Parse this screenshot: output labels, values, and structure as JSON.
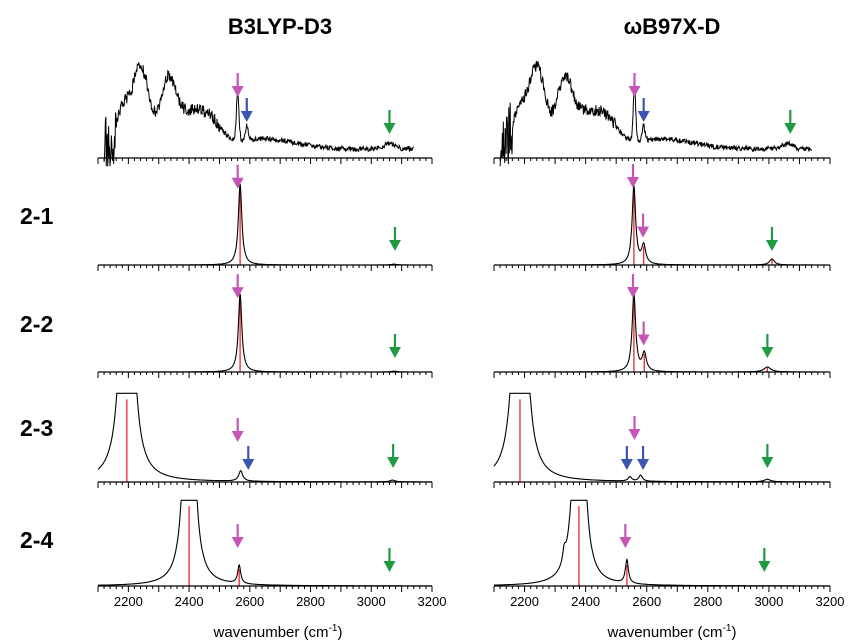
{
  "columns": [
    {
      "title": "B3LYP-D3"
    },
    {
      "title": "ωB97X-D"
    }
  ],
  "rows": [
    "2-1",
    "2-2",
    "2-3",
    "2-4"
  ],
  "xaxis": {
    "label": "wavenumber (cm",
    "unit_sup": "-1",
    "label_close": ")",
    "ticks": [
      "2200",
      "2400",
      "2600",
      "2800",
      "3000",
      "3200"
    ]
  },
  "colors": {
    "spectrum": "#000000",
    "stick": "#e8282b",
    "arrow_magenta": "#c556b6",
    "arrow_blue": "#3c55b0",
    "arrow_green": "#1f9a43"
  },
  "chart_data": [
    {
      "type": "line",
      "name": "experiment",
      "column": "B3LYP-D3",
      "xlim": [
        2100,
        3200
      ],
      "arrows": [
        {
          "x": 2560,
          "color": "magenta"
        },
        {
          "x": 2590,
          "color": "blue"
        },
        {
          "x": 3060,
          "color": "green"
        }
      ]
    },
    {
      "type": "line",
      "name": "experiment",
      "column": "ωB97X-D",
      "xlim": [
        2100,
        3200
      ],
      "arrows": [
        {
          "x": 2560,
          "color": "magenta"
        },
        {
          "x": 2590,
          "color": "blue"
        },
        {
          "x": 3070,
          "color": "green"
        }
      ]
    },
    {
      "type": "line",
      "row": "2-1",
      "column": "B3LYP-D3",
      "xlim": [
        2100,
        3200
      ],
      "peaks": [
        {
          "x": 2568,
          "h": 0.95,
          "w": 7
        },
        {
          "x": 3075,
          "h": 0.01,
          "w": 10
        }
      ],
      "sticks": [
        {
          "x": 2568,
          "h": 0.95
        }
      ],
      "arrows": [
        {
          "x": 2560,
          "color": "magenta"
        },
        {
          "x": 3078,
          "color": "green"
        }
      ]
    },
    {
      "type": "line",
      "row": "2-1",
      "column": "ωB97X-D",
      "xlim": [
        2100,
        3200
      ],
      "peaks": [
        {
          "x": 2558,
          "h": 0.92,
          "w": 7
        },
        {
          "x": 2590,
          "h": 0.22,
          "w": 8
        },
        {
          "x": 3010,
          "h": 0.07,
          "w": 10
        }
      ],
      "sticks": [
        {
          "x": 2558,
          "h": 0.92
        },
        {
          "x": 2590,
          "h": 0.22
        },
        {
          "x": 3010,
          "h": 0.06
        }
      ],
      "arrows": [
        {
          "x": 2555,
          "color": "magenta"
        },
        {
          "x": 2588,
          "color": "magenta"
        },
        {
          "x": 3010,
          "color": "green"
        }
      ]
    },
    {
      "type": "line",
      "row": "2-2",
      "column": "B3LYP-D3",
      "xlim": [
        2100,
        3200
      ],
      "peaks": [
        {
          "x": 2568,
          "h": 0.95,
          "w": 7
        },
        {
          "x": 3075,
          "h": 0.01,
          "w": 10
        }
      ],
      "sticks": [
        {
          "x": 2568,
          "h": 0.95
        }
      ],
      "arrows": [
        {
          "x": 2560,
          "color": "magenta"
        },
        {
          "x": 3078,
          "color": "green"
        }
      ]
    },
    {
      "type": "line",
      "row": "2-2",
      "column": "ωB97X-D",
      "xlim": [
        2100,
        3200
      ],
      "peaks": [
        {
          "x": 2558,
          "h": 0.95,
          "w": 7
        },
        {
          "x": 2592,
          "h": 0.22,
          "w": 8
        },
        {
          "x": 2995,
          "h": 0.06,
          "w": 14
        }
      ],
      "sticks": [
        {
          "x": 2558,
          "h": 0.95
        },
        {
          "x": 2592,
          "h": 0.22
        },
        {
          "x": 2995,
          "h": 0.05
        }
      ],
      "arrows": [
        {
          "x": 2555,
          "color": "magenta"
        },
        {
          "x": 2590,
          "color": "magenta"
        },
        {
          "x": 2995,
          "color": "green"
        }
      ]
    },
    {
      "type": "line",
      "row": "2-3",
      "column": "B3LYP-D3",
      "xlim": [
        2100,
        3200
      ],
      "peaks": [
        {
          "x": 2195,
          "h": 6.0,
          "w": 15
        },
        {
          "x": 2570,
          "h": 0.12,
          "w": 8
        },
        {
          "x": 3070,
          "h": 0.02,
          "w": 10
        }
      ],
      "sticks": [
        {
          "x": 2195,
          "h": 0.95
        }
      ],
      "arrows": [
        {
          "x": 2560,
          "color": "magenta"
        },
        {
          "x": 2595,
          "color": "blue"
        },
        {
          "x": 3072,
          "color": "green"
        }
      ]
    },
    {
      "type": "line",
      "row": "2-3",
      "column": "ωB97X-D",
      "xlim": [
        2100,
        3200
      ],
      "peaks": [
        {
          "x": 2185,
          "h": 6.0,
          "w": 15
        },
        {
          "x": 2545,
          "h": 0.05,
          "w": 7
        },
        {
          "x": 2580,
          "h": 0.07,
          "w": 7
        },
        {
          "x": 2995,
          "h": 0.03,
          "w": 12
        }
      ],
      "sticks": [
        {
          "x": 2185,
          "h": 0.95
        }
      ],
      "arrows": [
        {
          "x": 2535,
          "color": "blue"
        },
        {
          "x": 2560,
          "color": "magenta"
        },
        {
          "x": 2588,
          "color": "blue"
        },
        {
          "x": 2995,
          "color": "green"
        }
      ]
    },
    {
      "type": "line",
      "row": "2-4",
      "column": "B3LYP-D3",
      "xlim": [
        2100,
        3200
      ],
      "peaks": [
        {
          "x": 2400,
          "h": 6.0,
          "w": 12
        },
        {
          "x": 2565,
          "h": 0.22,
          "w": 6
        }
      ],
      "sticks": [
        {
          "x": 2400,
          "h": 0.95
        },
        {
          "x": 2565,
          "h": 0.2
        }
      ],
      "arrows": [
        {
          "x": 2560,
          "color": "magenta"
        },
        {
          "x": 3060,
          "color": "green"
        }
      ]
    },
    {
      "type": "line",
      "row": "2-4",
      "column": "ωB97X-D",
      "xlim": [
        2100,
        3200
      ],
      "peaks": [
        {
          "x": 2330,
          "h": 0.15,
          "w": 6
        },
        {
          "x": 2378,
          "h": 6.0,
          "w": 12
        },
        {
          "x": 2535,
          "h": 0.28,
          "w": 6
        }
      ],
      "sticks": [
        {
          "x": 2378,
          "h": 0.95
        },
        {
          "x": 2535,
          "h": 0.25
        }
      ],
      "arrows": [
        {
          "x": 2530,
          "color": "magenta"
        },
        {
          "x": 2985,
          "color": "green"
        }
      ]
    }
  ]
}
